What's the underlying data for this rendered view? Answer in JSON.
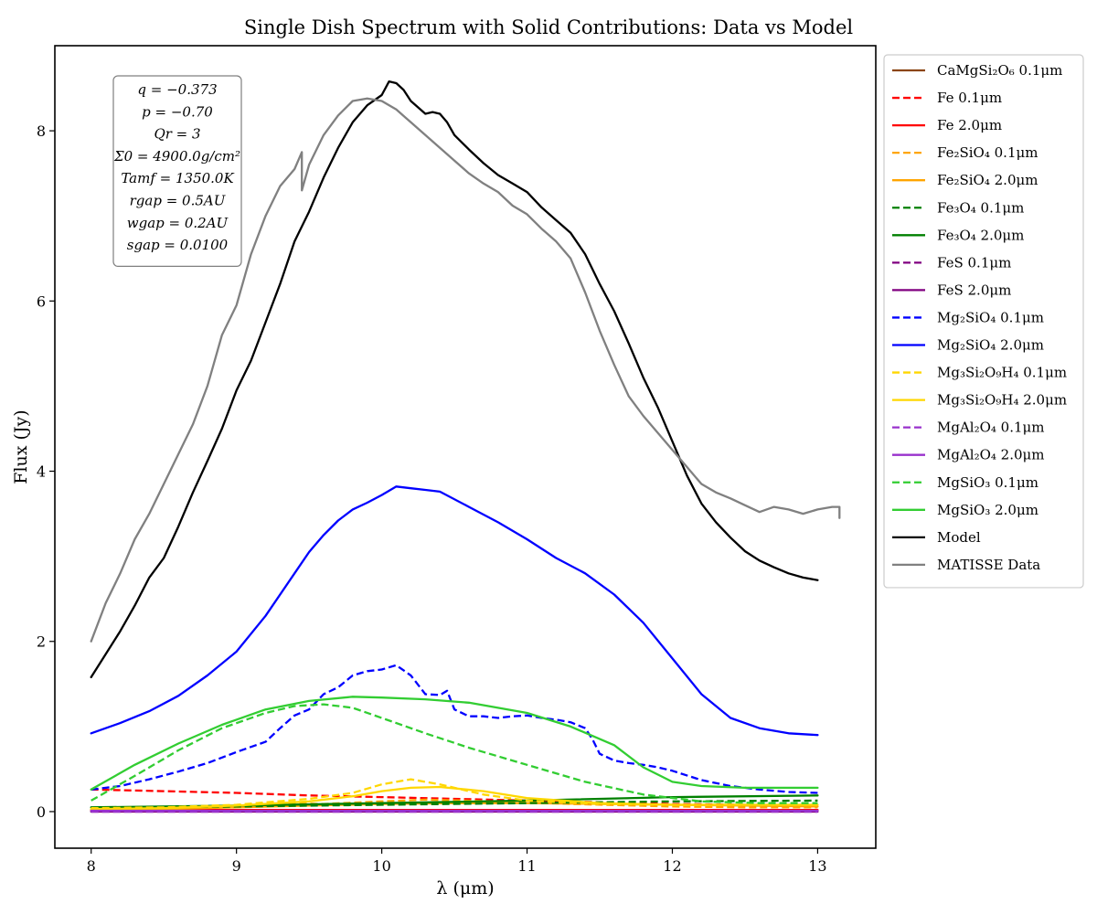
{
  "chart_data": {
    "type": "line",
    "title": "Single Dish Spectrum with Solid Contributions: Data vs Model",
    "xlabel": "λ (μm)",
    "ylabel": "Flux (Jy)",
    "xlim": [
      7.75,
      13.4
    ],
    "ylim": [
      -0.43,
      9.0
    ],
    "xticks": [
      8,
      9,
      10,
      11,
      12,
      13
    ],
    "yticks": [
      0,
      2,
      4,
      6,
      8
    ],
    "grid": false,
    "legend_position": "outside-right",
    "annotation": [
      "q = −0.373",
      "p = −0.70",
      "Qr = 3",
      "Σ0 = 4900.0g/cm²",
      "Tamf = 1350.0K",
      "rgap = 0.5AU",
      "wgap = 0.2AU",
      "sgap = 0.0100"
    ],
    "series": [
      {
        "name": "CaMgSi₂O₆ 0.1μm",
        "color": "#8B4513",
        "dash": false,
        "x": [
          8,
          9,
          10,
          11,
          12,
          13
        ],
        "y": [
          0.01,
          0.01,
          0.01,
          0.01,
          0.01,
          0.01
        ]
      },
      {
        "name": "Fe 0.1μm",
        "color": "#ff0000",
        "dash": true,
        "x": [
          8,
          8.5,
          9,
          9.5,
          10,
          10.5,
          11,
          11.5,
          12,
          12.5,
          13
        ],
        "y": [
          0.26,
          0.24,
          0.22,
          0.19,
          0.17,
          0.15,
          0.13,
          0.11,
          0.09,
          0.08,
          0.07
        ]
      },
      {
        "name": "Fe 2.0μm",
        "color": "#ff0000",
        "dash": false,
        "x": [
          8,
          9,
          10,
          11,
          12,
          13
        ],
        "y": [
          0.02,
          0.02,
          0.02,
          0.02,
          0.02,
          0.02
        ]
      },
      {
        "name": "Fe₂SiO₄ 0.1μm",
        "color": "#ffa500",
        "dash": true,
        "x": [
          8,
          8.5,
          9,
          9.3,
          9.6,
          10,
          10.3,
          10.8,
          11.3,
          12,
          12.5,
          13
        ],
        "y": [
          0.03,
          0.04,
          0.06,
          0.1,
          0.09,
          0.12,
          0.14,
          0.12,
          0.09,
          0.06,
          0.05,
          0.05
        ]
      },
      {
        "name": "Fe₂SiO₄ 2.0μm",
        "color": "#ffa500",
        "dash": false,
        "x": [
          8,
          8.5,
          9,
          9.5,
          10,
          10.5,
          11,
          11.5,
          12,
          12.5,
          13
        ],
        "y": [
          0.02,
          0.03,
          0.05,
          0.07,
          0.09,
          0.1,
          0.1,
          0.09,
          0.08,
          0.07,
          0.06
        ]
      },
      {
        "name": "Fe₃O₄ 0.1μm",
        "color": "#008000",
        "dash": true,
        "x": [
          8,
          9,
          10,
          11,
          12,
          13
        ],
        "y": [
          0.04,
          0.06,
          0.08,
          0.1,
          0.12,
          0.13
        ]
      },
      {
        "name": "Fe₃O₄ 2.0μm",
        "color": "#008000",
        "dash": false,
        "x": [
          8,
          9,
          10,
          11,
          12,
          13
        ],
        "y": [
          0.05,
          0.07,
          0.1,
          0.13,
          0.17,
          0.19
        ]
      },
      {
        "name": "FeS 0.1μm",
        "color": "#800080",
        "dash": true,
        "x": [
          8,
          9,
          10,
          11,
          12,
          13
        ],
        "y": [
          0.0,
          0.0,
          0.0,
          0.0,
          0.0,
          0.0
        ]
      },
      {
        "name": "FeS 2.0μm",
        "color": "#800080",
        "dash": false,
        "x": [
          8,
          9,
          10,
          11,
          12,
          13
        ],
        "y": [
          0.0,
          0.0,
          0.0,
          0.0,
          0.0,
          0.0
        ]
      },
      {
        "name": "Mg₂SiO₄ 0.1μm",
        "color": "#0000ff",
        "dash": true,
        "x": [
          8,
          8.2,
          8.4,
          8.6,
          8.8,
          9.0,
          9.2,
          9.3,
          9.4,
          9.5,
          9.6,
          9.7,
          9.8,
          9.9,
          10.0,
          10.1,
          10.2,
          10.3,
          10.4,
          10.45,
          10.5,
          10.6,
          10.7,
          10.8,
          10.9,
          11.0,
          11.1,
          11.2,
          11.3,
          11.4,
          11.45,
          11.5,
          11.6,
          11.7,
          11.8,
          11.9,
          12.0,
          12.2,
          12.4,
          12.6,
          12.8,
          13.0
        ],
        "y": [
          0.26,
          0.3,
          0.38,
          0.47,
          0.57,
          0.7,
          0.82,
          0.98,
          1.13,
          1.2,
          1.38,
          1.46,
          1.6,
          1.65,
          1.67,
          1.72,
          1.6,
          1.38,
          1.37,
          1.42,
          1.2,
          1.12,
          1.12,
          1.1,
          1.12,
          1.13,
          1.1,
          1.08,
          1.05,
          0.98,
          0.85,
          0.68,
          0.6,
          0.57,
          0.55,
          0.52,
          0.48,
          0.37,
          0.3,
          0.26,
          0.23,
          0.22
        ]
      },
      {
        "name": "Mg₂SiO₄ 2.0μm",
        "color": "#0000ff",
        "dash": false,
        "x": [
          8,
          8.2,
          8.4,
          8.6,
          8.8,
          9.0,
          9.2,
          9.4,
          9.5,
          9.6,
          9.7,
          9.8,
          9.9,
          10.0,
          10.1,
          10.2,
          10.3,
          10.4,
          10.6,
          10.8,
          11.0,
          11.2,
          11.4,
          11.6,
          11.8,
          12.0,
          12.2,
          12.4,
          12.6,
          12.8,
          13.0
        ],
        "y": [
          0.92,
          1.04,
          1.18,
          1.36,
          1.6,
          1.88,
          2.3,
          2.8,
          3.05,
          3.25,
          3.42,
          3.55,
          3.63,
          3.72,
          3.82,
          3.8,
          3.78,
          3.76,
          3.58,
          3.4,
          3.2,
          2.98,
          2.8,
          2.55,
          2.22,
          1.8,
          1.38,
          1.1,
          0.98,
          0.92,
          0.9
        ]
      },
      {
        "name": "Mg₃Si₂O₉H₄ 0.1μm",
        "color": "#ffd700",
        "dash": true,
        "x": [
          8,
          8.5,
          9,
          9.5,
          9.8,
          10.0,
          10.2,
          10.4,
          10.7,
          11.0,
          11.5,
          12.0,
          12.5,
          13.0
        ],
        "y": [
          0.04,
          0.05,
          0.08,
          0.15,
          0.22,
          0.32,
          0.38,
          0.32,
          0.2,
          0.13,
          0.09,
          0.08,
          0.08,
          0.08
        ]
      },
      {
        "name": "Mg₃Si₂O₉H₄ 2.0μm",
        "color": "#ffd700",
        "dash": false,
        "x": [
          8,
          8.5,
          9,
          9.5,
          9.8,
          10.0,
          10.2,
          10.4,
          10.7,
          11.0,
          11.5,
          12.0,
          12.5,
          13.0
        ],
        "y": [
          0.03,
          0.04,
          0.07,
          0.12,
          0.18,
          0.24,
          0.28,
          0.29,
          0.24,
          0.16,
          0.1,
          0.08,
          0.08,
          0.08
        ]
      },
      {
        "name": "MgAl₂O₄ 0.1μm",
        "color": "#9932cc",
        "dash": true,
        "x": [
          8,
          9,
          10,
          11,
          12,
          13
        ],
        "y": [
          0.0,
          0.0,
          0.0,
          0.0,
          0.0,
          0.0
        ]
      },
      {
        "name": "MgAl₂O₄ 2.0μm",
        "color": "#9932cc",
        "dash": false,
        "x": [
          8,
          9,
          10,
          11,
          12,
          13
        ],
        "y": [
          0.01,
          0.01,
          0.01,
          0.01,
          0.01,
          0.01
        ]
      },
      {
        "name": "MgSiO₃ 0.1μm",
        "color": "#32cd32",
        "dash": true,
        "x": [
          8,
          8.3,
          8.6,
          8.9,
          9.2,
          9.4,
          9.6,
          9.8,
          10.0,
          10.3,
          10.6,
          11.0,
          11.4,
          11.8,
          12.2,
          12.6,
          13.0
        ],
        "y": [
          0.13,
          0.42,
          0.72,
          0.98,
          1.16,
          1.24,
          1.26,
          1.22,
          1.1,
          0.92,
          0.75,
          0.55,
          0.35,
          0.2,
          0.12,
          0.1,
          0.1
        ]
      },
      {
        "name": "MgSiO₃ 2.0μm",
        "color": "#32cd32",
        "dash": false,
        "x": [
          8,
          8.3,
          8.6,
          8.9,
          9.2,
          9.5,
          9.8,
          10.0,
          10.3,
          10.6,
          11.0,
          11.3,
          11.6,
          11.8,
          12.0,
          12.2,
          12.5,
          13.0
        ],
        "y": [
          0.26,
          0.55,
          0.8,
          1.02,
          1.2,
          1.3,
          1.35,
          1.34,
          1.32,
          1.28,
          1.16,
          1.0,
          0.78,
          0.52,
          0.35,
          0.3,
          0.28,
          0.28
        ]
      },
      {
        "name": "Model",
        "color": "#000000",
        "dash": false,
        "x": [
          8,
          8.1,
          8.2,
          8.3,
          8.4,
          8.5,
          8.6,
          8.7,
          8.8,
          8.9,
          9.0,
          9.1,
          9.2,
          9.3,
          9.4,
          9.5,
          9.6,
          9.7,
          9.8,
          9.9,
          10.0,
          10.05,
          10.1,
          10.15,
          10.2,
          10.3,
          10.35,
          10.4,
          10.45,
          10.5,
          10.6,
          10.7,
          10.8,
          10.9,
          11.0,
          11.1,
          11.2,
          11.3,
          11.4,
          11.5,
          11.6,
          11.7,
          11.8,
          11.9,
          12.0,
          12.1,
          12.2,
          12.3,
          12.4,
          12.5,
          12.6,
          12.7,
          12.8,
          12.9,
          13.0
        ],
        "y": [
          1.58,
          1.85,
          2.12,
          2.42,
          2.75,
          2.98,
          3.35,
          3.75,
          4.12,
          4.5,
          4.95,
          5.3,
          5.75,
          6.2,
          6.7,
          7.05,
          7.45,
          7.8,
          8.1,
          8.3,
          8.42,
          8.58,
          8.56,
          8.48,
          8.35,
          8.2,
          8.22,
          8.2,
          8.1,
          7.95,
          7.78,
          7.62,
          7.48,
          7.38,
          7.28,
          7.1,
          6.95,
          6.8,
          6.55,
          6.2,
          5.88,
          5.5,
          5.1,
          4.75,
          4.35,
          3.95,
          3.62,
          3.4,
          3.22,
          3.06,
          2.95,
          2.87,
          2.8,
          2.75,
          2.72
        ]
      },
      {
        "name": "MATISSE Data",
        "color": "#808080",
        "dash": false,
        "x": [
          8,
          8.1,
          8.2,
          8.3,
          8.4,
          8.5,
          8.6,
          8.7,
          8.8,
          8.9,
          9.0,
          9.1,
          9.2,
          9.3,
          9.4,
          9.45,
          9.45,
          9.5,
          9.6,
          9.7,
          9.8,
          9.9,
          10.0,
          10.1,
          10.2,
          10.3,
          10.4,
          10.5,
          10.6,
          10.7,
          10.8,
          10.9,
          11.0,
          11.1,
          11.2,
          11.3,
          11.4,
          11.5,
          11.6,
          11.7,
          11.8,
          11.9,
          12.0,
          12.1,
          12.2,
          12.3,
          12.4,
          12.5,
          12.6,
          12.7,
          12.8,
          12.9,
          13.0,
          13.1,
          13.15,
          13.15
        ],
        "y": [
          2.0,
          2.45,
          2.8,
          3.2,
          3.5,
          3.85,
          4.2,
          4.55,
          5.0,
          5.6,
          5.95,
          6.55,
          7.0,
          7.35,
          7.55,
          7.75,
          7.3,
          7.6,
          7.95,
          8.18,
          8.35,
          8.38,
          8.35,
          8.25,
          8.1,
          7.95,
          7.8,
          7.65,
          7.5,
          7.38,
          7.28,
          7.12,
          7.02,
          6.85,
          6.7,
          6.5,
          6.1,
          5.65,
          5.25,
          4.88,
          4.65,
          4.45,
          4.25,
          4.05,
          3.85,
          3.75,
          3.68,
          3.6,
          3.52,
          3.58,
          3.55,
          3.5,
          3.55,
          3.58,
          3.58,
          3.45
        ]
      }
    ]
  }
}
